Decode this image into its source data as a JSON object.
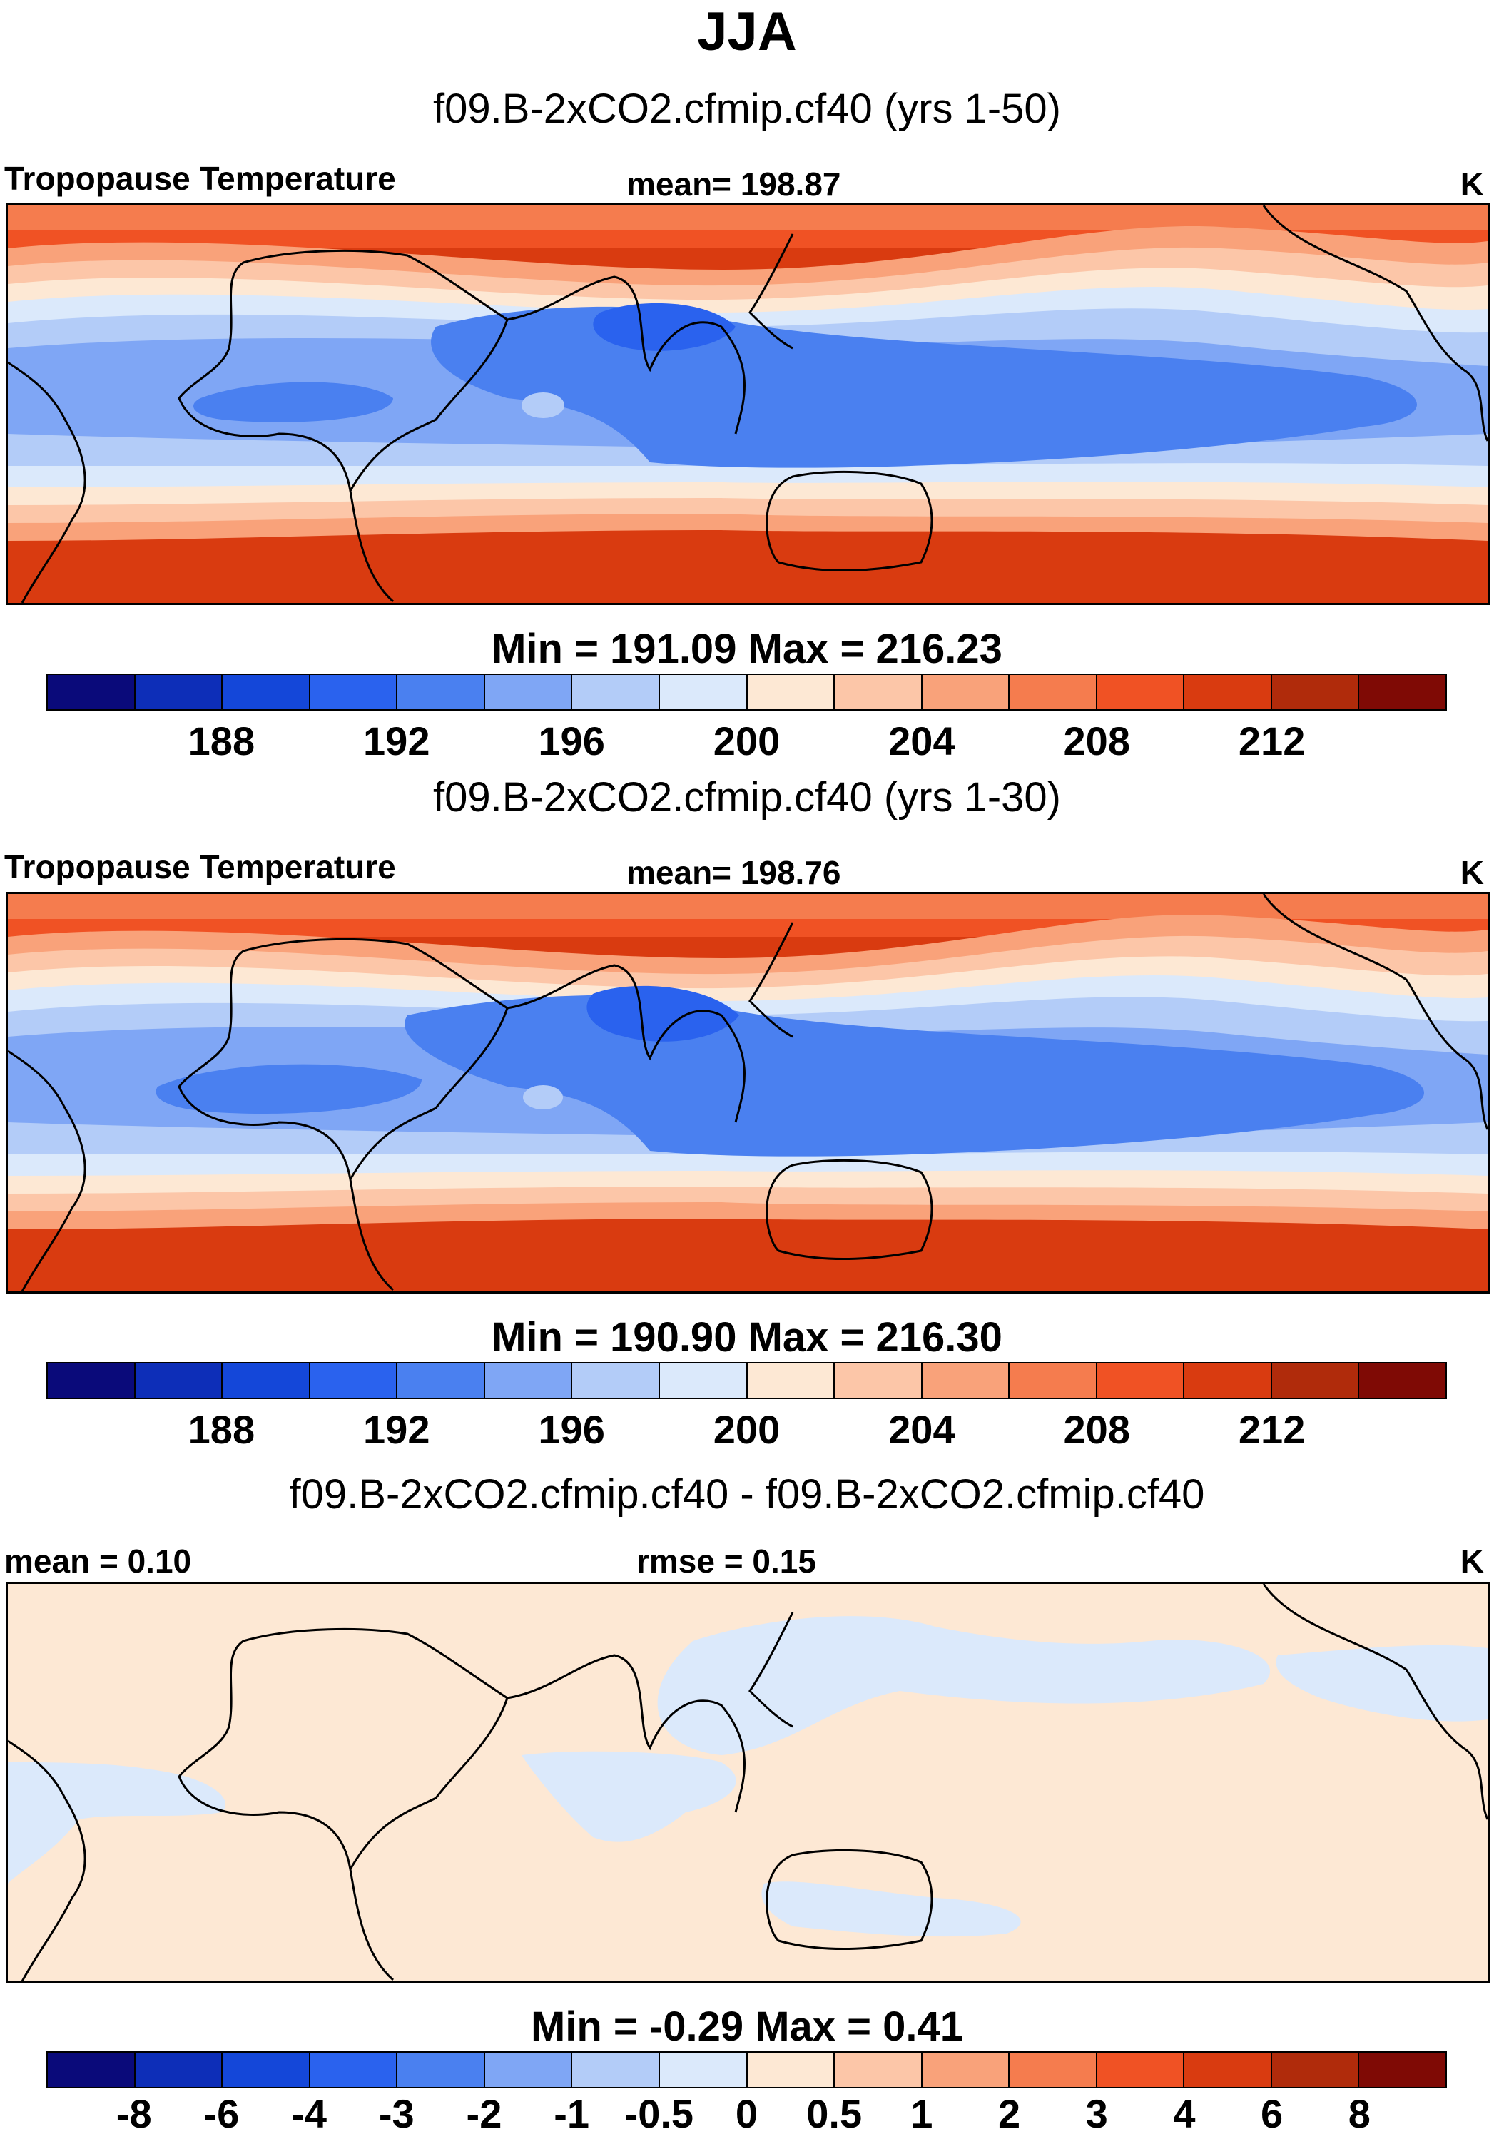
{
  "title": "JJA",
  "panels": [
    {
      "subtitle": "f09.B-2xCO2.cfmip.cf40 (yrs 1-50)",
      "left_label": "Tropopause Temperature",
      "center_label": "mean= 198.87",
      "units": "K",
      "min_max": "Min = 191.09 Max = 216.23",
      "colorbar_ticks": [
        "188",
        "192",
        "196",
        "200",
        "204",
        "208",
        "212"
      ]
    },
    {
      "subtitle": "f09.B-2xCO2.cfmip.cf40 (yrs 1-30)",
      "left_label": "Tropopause Temperature",
      "center_label": "mean= 198.76",
      "units": "K",
      "min_max": "Min = 190.90 Max = 216.30",
      "colorbar_ticks": [
        "188",
        "192",
        "196",
        "200",
        "204",
        "208",
        "212"
      ]
    },
    {
      "subtitle": "f09.B-2xCO2.cfmip.cf40 - f09.B-2xCO2.cfmip.cf40",
      "left_label": "mean =   0.10",
      "center_label": "rmse =   0.15",
      "units": "K",
      "min_max": "Min =  -0.29 Max =   0.41",
      "colorbar_ticks": [
        "-8",
        "-6",
        "-4",
        "-3",
        "-2",
        "-1",
        "-0.5",
        "0",
        "0.5",
        "1",
        "2",
        "3",
        "4",
        "6",
        "8"
      ]
    }
  ],
  "colors": {
    "palette": [
      "#0a0a7a",
      "#0d2eb8",
      "#1447d9",
      "#2a62ee",
      "#4a80f0",
      "#7fa6f5",
      "#b3ccf8",
      "#dbe9fb",
      "#fde8d4",
      "#fcc6a8",
      "#f9a27a",
      "#f57c4e",
      "#f05224",
      "#d93b10",
      "#b02b0b",
      "#7f0a05"
    ],
    "diff_background": "#fde8d4",
    "diff_negative": "#dbe9fb"
  }
}
